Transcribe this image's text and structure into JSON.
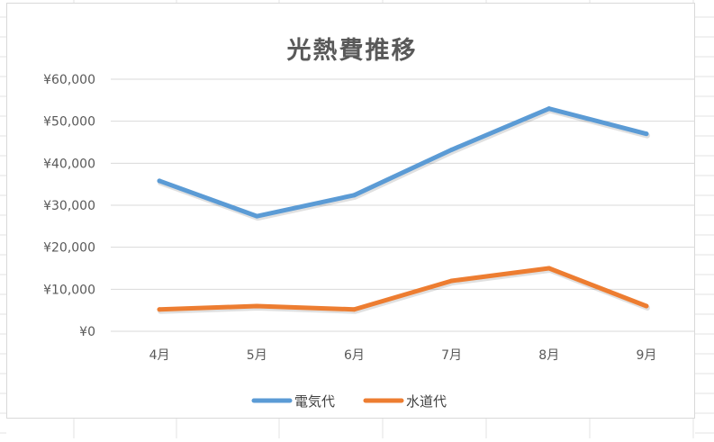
{
  "chart_data": {
    "type": "line",
    "title": "光熱費推移",
    "categories": [
      "4月",
      "5月",
      "6月",
      "7月",
      "8月",
      "9月"
    ],
    "series": [
      {
        "name": "電気代",
        "values": [
          35800,
          27400,
          32400,
          43200,
          53000,
          47000
        ],
        "color": "#5b9bd5"
      },
      {
        "name": "水道代",
        "values": [
          5200,
          6000,
          5200,
          12000,
          15000,
          6000
        ],
        "color": "#ed7d31"
      }
    ],
    "yticks": [
      "¥0",
      "¥10,000",
      "¥20,000",
      "¥30,000",
      "¥40,000",
      "¥50,000",
      "¥60,000"
    ],
    "ylim": [
      0,
      60000
    ],
    "grid": true,
    "legend_position": "bottom"
  }
}
